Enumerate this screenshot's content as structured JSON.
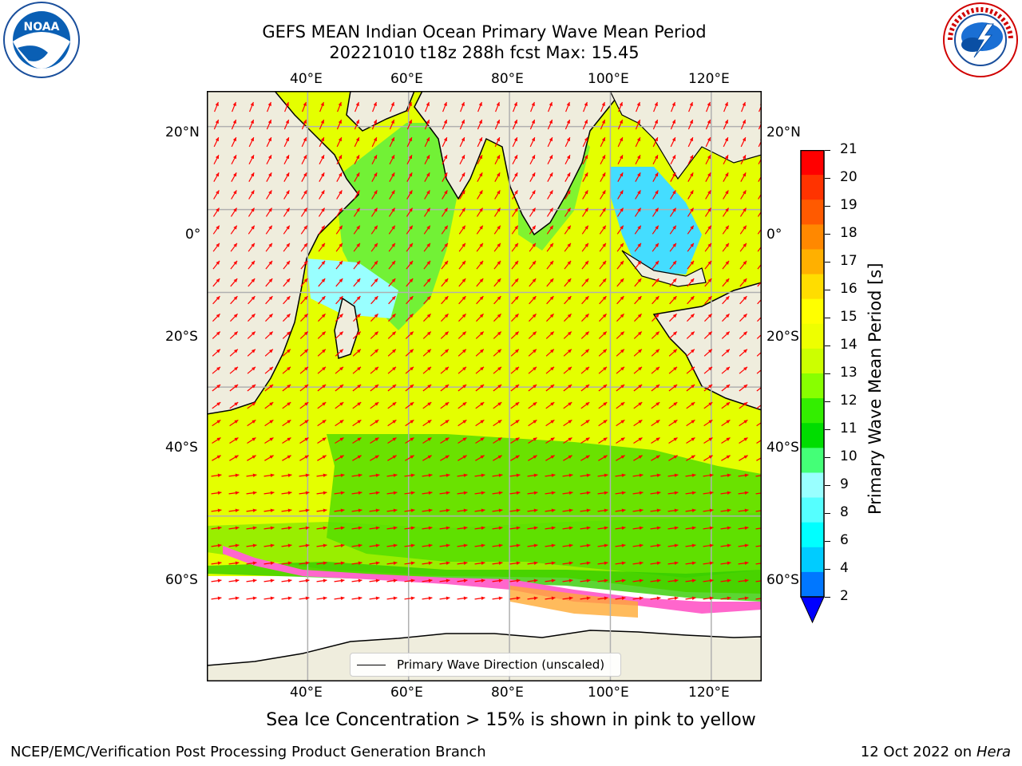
{
  "header": {
    "title_line1": "GEFS MEAN Indian Ocean Primary Wave Mean Period",
    "title_line2": "20221010 t18z 288h fcst   Max: 15.45"
  },
  "logos": {
    "left": "NOAA",
    "left_ring": "NATIONAL OCEANIC AND ATMOSPHERIC ADMINISTRATION · U.S. DEPARTMENT OF COMMERCE",
    "right_ring": "NATIONAL WEATHER SERVICE"
  },
  "map": {
    "lon_ticks": [
      "40°E",
      "60°E",
      "80°E",
      "100°E",
      "120°E"
    ],
    "lat_ticks": [
      "20°N",
      "0°",
      "20°S",
      "40°S",
      "60°S"
    ],
    "lon_range": [
      20,
      130
    ],
    "lat_range": [
      -75,
      28
    ],
    "lon_values": [
      40,
      60,
      80,
      100,
      120
    ],
    "lat_values": [
      20,
      0,
      -20,
      -40,
      -60
    ],
    "colors": {
      "land": "#efeddd",
      "arrow": "#ff0000",
      "grid": "#b0b0b0",
      "ice": "#ff66cc"
    }
  },
  "legend": {
    "label": "Primary Wave Direction (unscaled)"
  },
  "colorbar": {
    "label": "Primary Wave Mean Period [s]",
    "ticks": [
      "21",
      "20",
      "19",
      "18",
      "17",
      "16",
      "15",
      "14",
      "13",
      "12",
      "11",
      "10",
      "9",
      "8",
      "6",
      "4",
      "2"
    ],
    "colors": [
      "#ff0000",
      "#ff3300",
      "#ff5a00",
      "#ff8800",
      "#ffb000",
      "#ffdd00",
      "#ffff00",
      "#eeff00",
      "#ccff00",
      "#88ff00",
      "#33ee00",
      "#00dd00",
      "#44ff77",
      "#99ffff",
      "#55ffff",
      "#00ffff",
      "#00ccff",
      "#0077ff",
      "#0000ff"
    ],
    "extend": "min"
  },
  "caption": "Sea Ice Concentration > 15% is shown in pink to yellow",
  "footer": {
    "left": "NCEP/EMC/Verification Post Processing Product Generation Branch",
    "right_prefix": "12 Oct 2022 on ",
    "right_host": "Hera"
  }
}
